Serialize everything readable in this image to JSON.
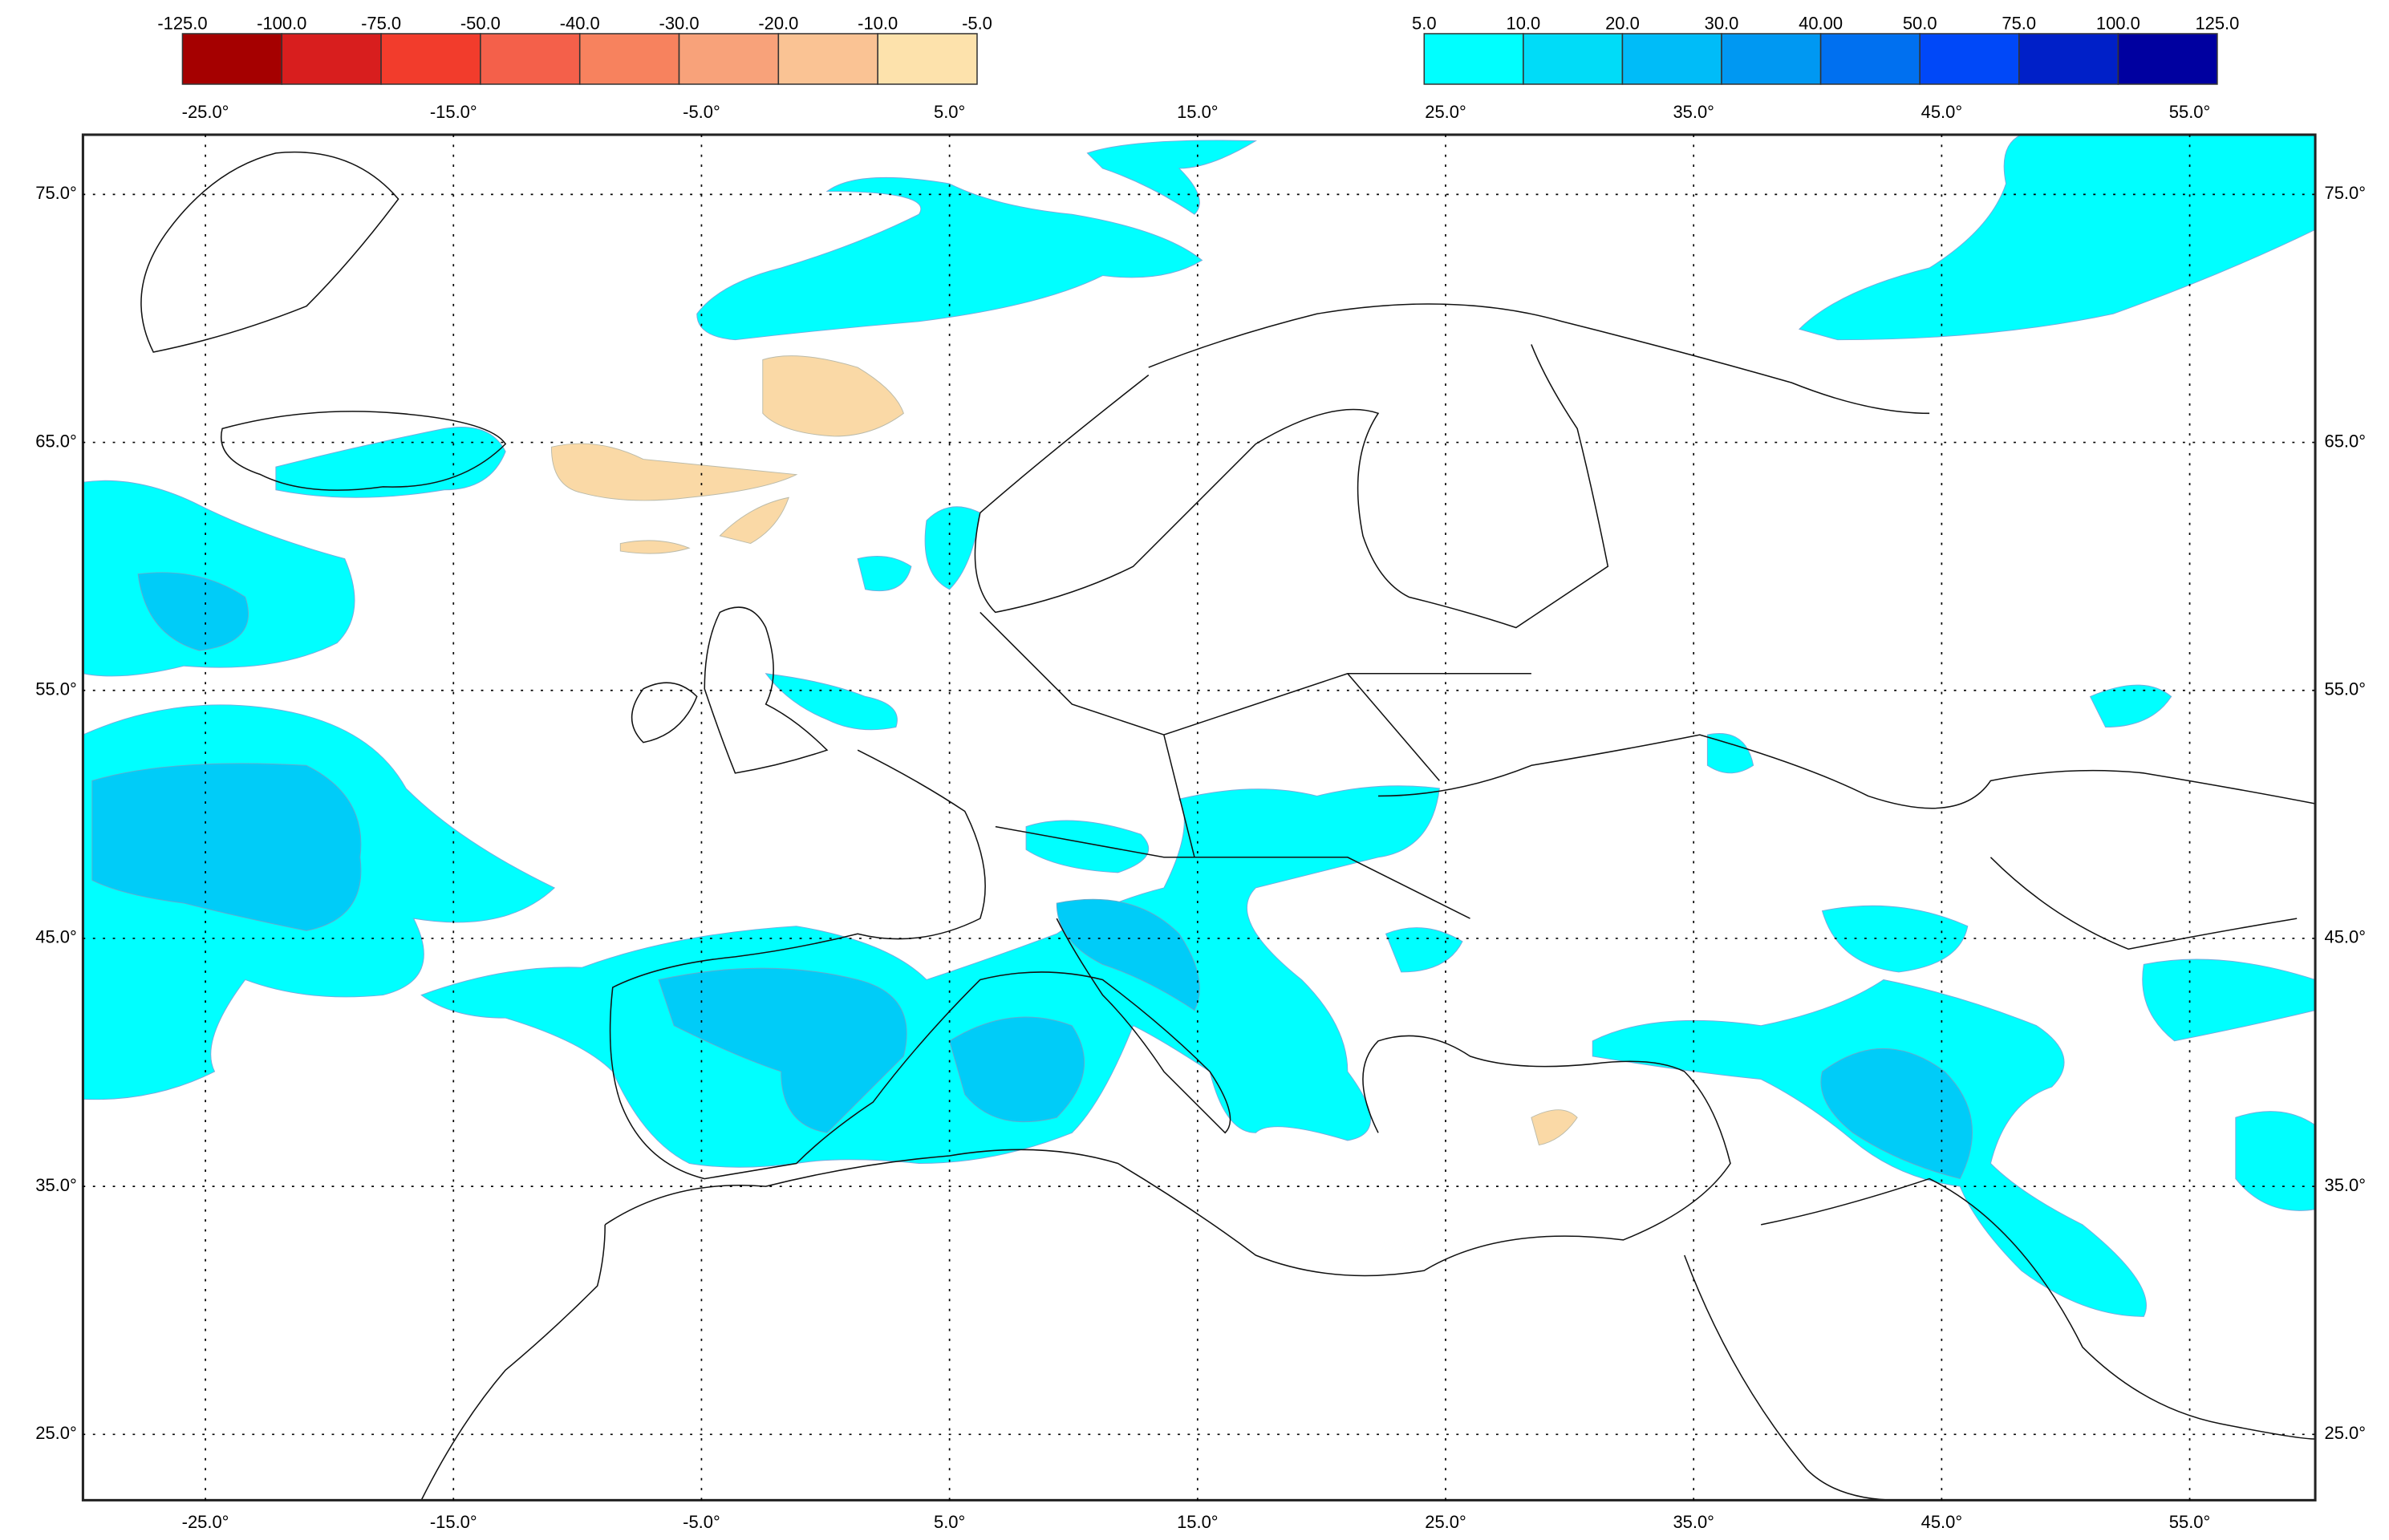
{
  "legend_negative": {
    "labels": [
      {
        "value": -125,
        "label": "-125.0"
      },
      {
        "value": -100,
        "label": "-100.0"
      },
      {
        "value": -75,
        "label": "-75.0"
      },
      {
        "value": -50,
        "label": "-50.0"
      },
      {
        "value": -40,
        "label": "-40.0"
      },
      {
        "value": -30,
        "label": "-30.0"
      },
      {
        "value": -20,
        "label": "-20.0"
      },
      {
        "value": -10,
        "label": "-10.0"
      },
      {
        "value": -5,
        "label": "-5.0"
      }
    ],
    "colors": [
      "#a50000",
      "#d81e1e",
      "#f23c2c",
      "#f4604a",
      "#f7825e",
      "#f8a27a",
      "#fac394",
      "#fde2ac"
    ]
  },
  "legend_positive": {
    "labels": [
      {
        "value": 5,
        "label": "5.0"
      },
      {
        "value": 10,
        "label": "10.0"
      },
      {
        "value": 20,
        "label": "20.0"
      },
      {
        "value": 30,
        "label": "30.0"
      },
      {
        "value": 40,
        "label": "40.00"
      },
      {
        "value": 50,
        "label": "50.0"
      },
      {
        "value": 75,
        "label": "75.0"
      },
      {
        "value": 100,
        "label": "100.0"
      },
      {
        "value": 125,
        "label": "125.0"
      }
    ],
    "colors": [
      "#00ffff",
      "#00dcf8",
      "#00bcf8",
      "#0098f2",
      "#0070f0",
      "#0048f8",
      "#0020c8",
      "#0000a0"
    ]
  },
  "map": {
    "lon_ticks": [
      {
        "value": -25,
        "label": "-25.0°"
      },
      {
        "value": -15,
        "label": "-15.0°"
      },
      {
        "value": -5,
        "label": "-5.0°"
      },
      {
        "value": 5,
        "label": "5.0°"
      },
      {
        "value": 15,
        "label": "15.0°"
      },
      {
        "value": 25,
        "label": "25.0°"
      },
      {
        "value": 35,
        "label": "35.0°"
      },
      {
        "value": 45,
        "label": "45.0°"
      },
      {
        "value": 55,
        "label": "55.0°"
      }
    ],
    "lat_ticks": [
      {
        "value": 75,
        "label": "75.0°"
      },
      {
        "value": 65,
        "label": "65.0°"
      },
      {
        "value": 55,
        "label": "55.0°"
      },
      {
        "value": 45,
        "label": "45.0°"
      },
      {
        "value": 35,
        "label": "35.0°"
      },
      {
        "value": 25,
        "label": "25.0°"
      }
    ]
  }
}
